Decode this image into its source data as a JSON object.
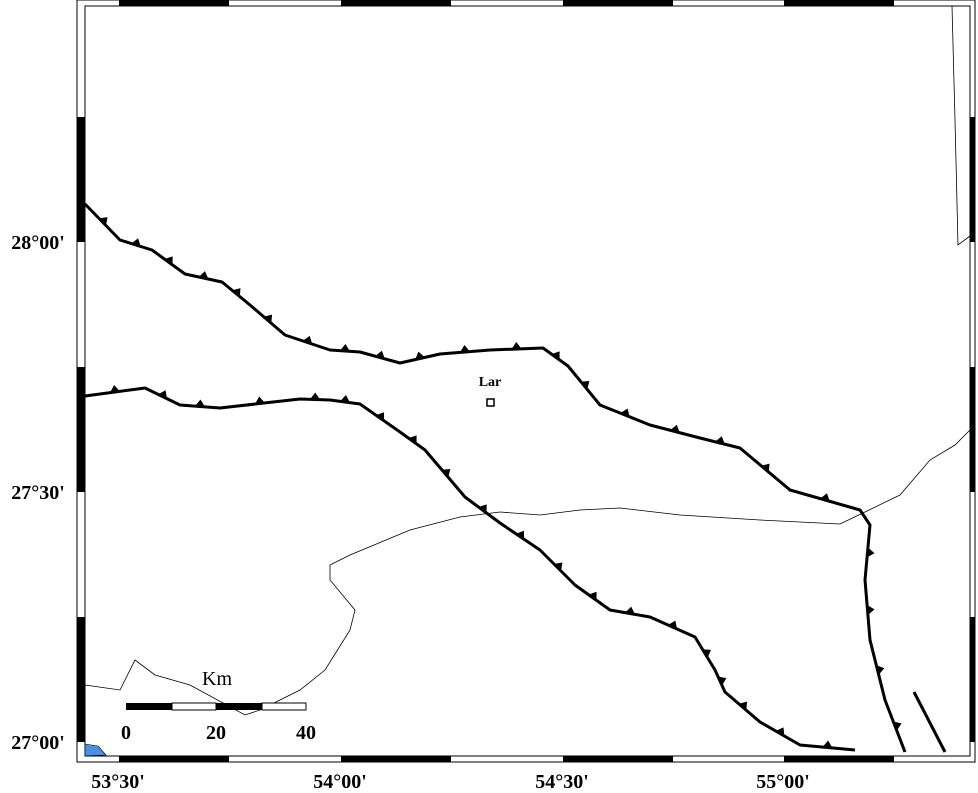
{
  "map": {
    "city": "Lar",
    "lon_labels": [
      "53°30'",
      "54°00'",
      "54°30'",
      "55°00'"
    ],
    "lat_labels": [
      "28°00'",
      "27°30'",
      "27°00'"
    ],
    "scale": {
      "unit": "Km",
      "labels": [
        "0",
        "20",
        "40"
      ]
    }
  }
}
